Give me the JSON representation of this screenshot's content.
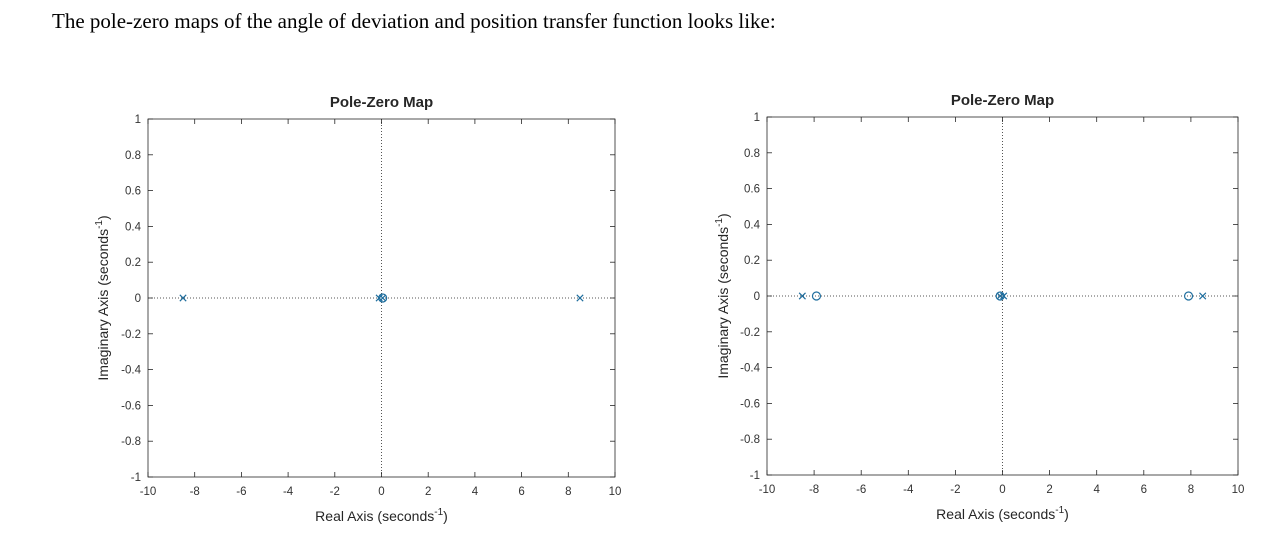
{
  "intro_text": "The pole-zero maps of the angle of deviation and position transfer function looks like:",
  "colors": {
    "marker": "#1f6e9e",
    "axis": "#262626",
    "zero_line": "#555555"
  },
  "chart_data": [
    {
      "type": "scatter",
      "title": "Pole-Zero Map",
      "xlabel": "Real Axis (seconds",
      "ylabel": "Imaginary Axis (seconds",
      "unit_exponent": "-1",
      "label_close": ")",
      "xlim": [
        -10,
        10
      ],
      "ylim": [
        -1,
        1
      ],
      "xticks": [
        -10,
        -8,
        -6,
        -4,
        -2,
        0,
        2,
        4,
        6,
        8,
        10
      ],
      "yticks": [
        -1,
        -0.8,
        -0.6,
        -0.4,
        -0.2,
        0,
        0.2,
        0.4,
        0.6,
        0.8,
        1
      ],
      "grid": false,
      "poles": [
        [
          -8.5,
          0
        ],
        [
          -0.1,
          0
        ],
        [
          0.05,
          0
        ],
        [
          8.5,
          0
        ]
      ],
      "zeros": [
        [
          0.05,
          0
        ]
      ]
    },
    {
      "type": "scatter",
      "title": "Pole-Zero Map",
      "xlabel": "Real Axis (seconds",
      "ylabel": "Imaginary Axis (seconds",
      "unit_exponent": "-1",
      "label_close": ")",
      "xlim": [
        -10,
        10
      ],
      "ylim": [
        -1,
        1
      ],
      "xticks": [
        -10,
        -8,
        -6,
        -4,
        -2,
        0,
        2,
        4,
        6,
        8,
        10
      ],
      "yticks": [
        -1,
        -0.8,
        -0.6,
        -0.4,
        -0.2,
        0,
        0.2,
        0.4,
        0.6,
        0.8,
        1
      ],
      "grid": false,
      "poles": [
        [
          -8.5,
          0
        ],
        [
          -0.1,
          0
        ],
        [
          0.05,
          0
        ],
        [
          8.5,
          0
        ]
      ],
      "zeros": [
        [
          -7.9,
          0
        ],
        [
          -0.1,
          0
        ],
        [
          7.9,
          0
        ]
      ]
    }
  ]
}
